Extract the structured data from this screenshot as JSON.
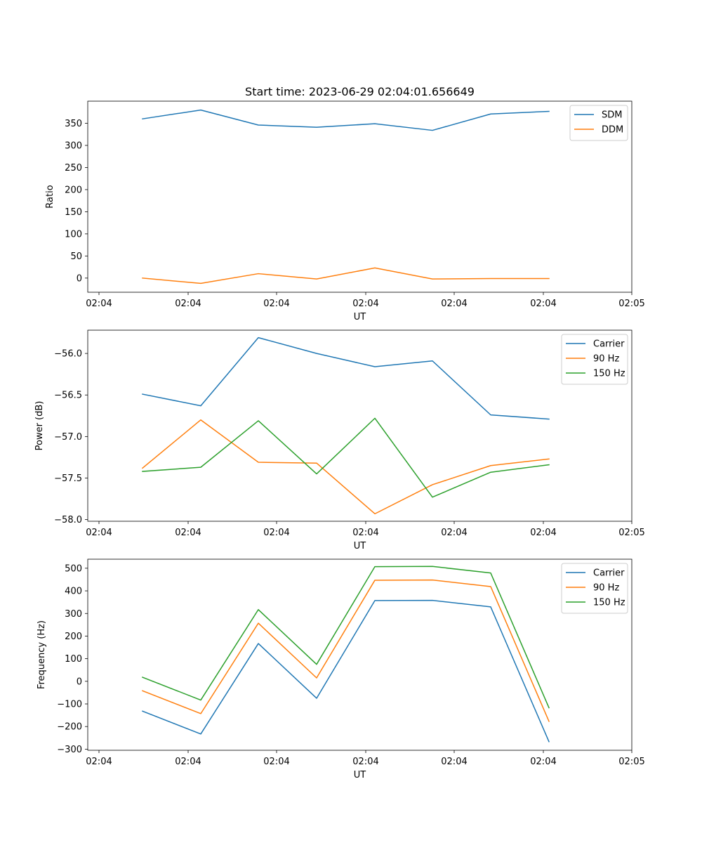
{
  "figure": {
    "title": "Start time: 2023-06-29 02:04:01.656649"
  },
  "colors": {
    "blue": "#1f77b4",
    "orange": "#ff7f0e",
    "green": "#2ca02c"
  },
  "chart_data": [
    {
      "type": "line",
      "title": "Start time: 2023-06-29 02:04:01.656649",
      "xlabel": "UT",
      "ylabel": "Ratio",
      "x_tick_labels": [
        "02:04",
        "02:04",
        "02:04",
        "02:04",
        "02:04",
        "02:04",
        "02:04",
        "02:05"
      ],
      "ylim": [
        -32,
        400
      ],
      "y_ticks": [
        0,
        50,
        100,
        150,
        200,
        250,
        300,
        350
      ],
      "grid": false,
      "legend_position": "upper right",
      "series": [
        {
          "name": "SDM",
          "color": "#1f77b4",
          "values": [
            360,
            380,
            346,
            341,
            349,
            334,
            371,
            377
          ]
        },
        {
          "name": "DDM",
          "color": "#ff7f0e",
          "values": [
            0,
            -12,
            10,
            -2,
            23,
            -2,
            -1,
            -1
          ]
        }
      ]
    },
    {
      "type": "line",
      "title": "",
      "xlabel": "UT",
      "ylabel": "Power (dB)",
      "x_tick_labels": [
        "02:04",
        "02:04",
        "02:04",
        "02:04",
        "02:04",
        "02:04",
        "02:04",
        "02:05"
      ],
      "ylim": [
        -58.02,
        -55.72
      ],
      "y_ticks": [
        -58.0,
        -57.5,
        -57.0,
        -56.5,
        -56.0
      ],
      "y_tick_labels": [
        "−58.0",
        "−57.5",
        "−57.0",
        "−56.5",
        "−56.0"
      ],
      "grid": false,
      "legend_position": "upper right",
      "series": [
        {
          "name": "Carrier",
          "color": "#1f77b4",
          "values": [
            -56.49,
            -56.63,
            -55.81,
            -56.0,
            -56.16,
            -56.09,
            -56.74,
            -56.79
          ]
        },
        {
          "name": "90 Hz",
          "color": "#ff7f0e",
          "values": [
            -57.38,
            -56.8,
            -57.31,
            -57.32,
            -57.93,
            -57.58,
            -57.35,
            -57.27
          ]
        },
        {
          "name": "150 Hz",
          "color": "#2ca02c",
          "values": [
            -57.42,
            -57.37,
            -56.81,
            -57.45,
            -56.78,
            -57.73,
            -57.43,
            -57.34
          ]
        }
      ]
    },
    {
      "type": "line",
      "title": "",
      "xlabel": "UT",
      "ylabel": "Frequency (Hz)",
      "x_tick_labels": [
        "02:04",
        "02:04",
        "02:04",
        "02:04",
        "02:04",
        "02:04",
        "02:04",
        "02:05"
      ],
      "ylim": [
        -305,
        540
      ],
      "y_ticks": [
        -300,
        -200,
        -100,
        0,
        100,
        200,
        300,
        400,
        500
      ],
      "y_tick_labels": [
        "−300",
        "−200",
        "−100",
        "0",
        "100",
        "200",
        "300",
        "400",
        "500"
      ],
      "grid": false,
      "legend_position": "upper right",
      "series": [
        {
          "name": "Carrier",
          "color": "#1f77b4",
          "values": [
            -132,
            -233,
            167,
            -75,
            357,
            358,
            329,
            -267
          ]
        },
        {
          "name": "90 Hz",
          "color": "#ff7f0e",
          "values": [
            -42,
            -143,
            257,
            15,
            447,
            448,
            419,
            -177
          ]
        },
        {
          "name": "150 Hz",
          "color": "#2ca02c",
          "values": [
            18,
            -83,
            317,
            75,
            507,
            508,
            479,
            -117
          ]
        }
      ]
    }
  ]
}
